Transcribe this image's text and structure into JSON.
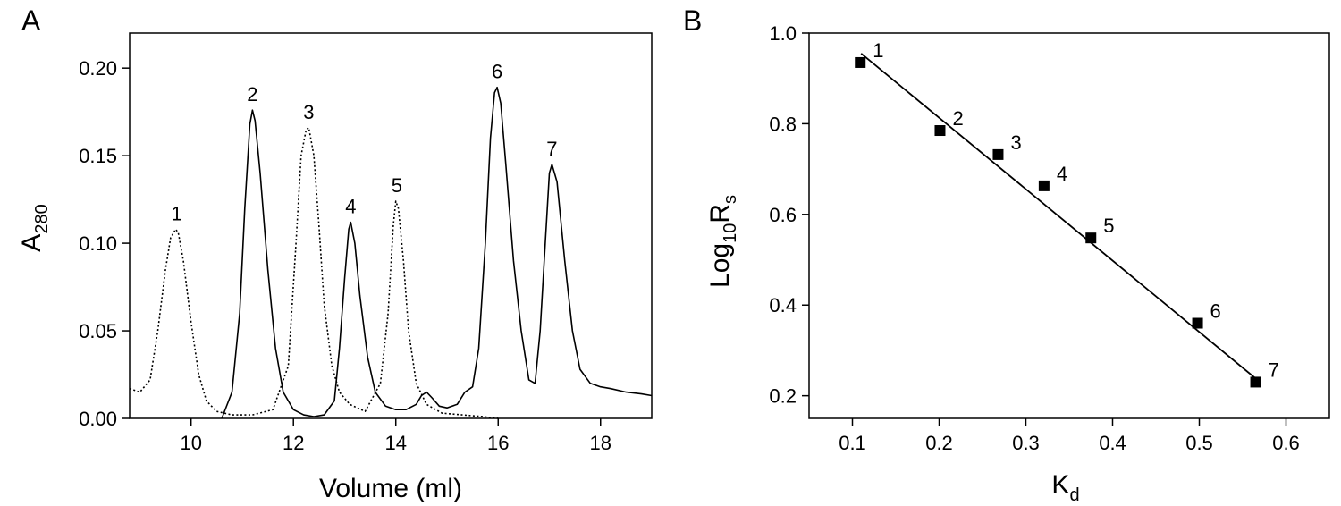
{
  "chart_data": [
    {
      "panel_label": "A",
      "type": "line",
      "xlabel": "Volume (ml)",
      "ylabel_main": "A",
      "ylabel_sub": "280",
      "xlim": [
        8.8,
        19.0
      ],
      "ylim": [
        0.0,
        0.22
      ],
      "xticks": [
        10,
        12,
        14,
        16,
        18
      ],
      "xtick_labels": [
        "10",
        "12",
        "14",
        "16",
        "18"
      ],
      "yticks": [
        0.0,
        0.05,
        0.1,
        0.15,
        0.2
      ],
      "ytick_labels": [
        "0.00",
        "0.05",
        "0.10",
        "0.15",
        "0.20"
      ],
      "series": [
        {
          "style": "dotted",
          "x": [
            8.8,
            9.0,
            9.2,
            9.35,
            9.5,
            9.6,
            9.7,
            9.75,
            9.85,
            10.0,
            10.15,
            10.3,
            10.5,
            10.8,
            11.2,
            11.6,
            11.9,
            12.05,
            12.15,
            12.25,
            12.3,
            12.4,
            12.5,
            12.6,
            12.75,
            12.9,
            13.1,
            13.4,
            13.7,
            13.85,
            13.95,
            14.0,
            14.05,
            14.15,
            14.25,
            14.4,
            14.6,
            14.9,
            15.3,
            15.7,
            16.0
          ],
          "y": [
            0.017,
            0.015,
            0.022,
            0.05,
            0.085,
            0.103,
            0.108,
            0.106,
            0.09,
            0.055,
            0.025,
            0.01,
            0.004,
            0.002,
            0.002,
            0.005,
            0.03,
            0.1,
            0.15,
            0.165,
            0.166,
            0.15,
            0.11,
            0.065,
            0.03,
            0.015,
            0.008,
            0.004,
            0.02,
            0.06,
            0.11,
            0.124,
            0.12,
            0.09,
            0.05,
            0.02,
            0.008,
            0.003,
            0.002,
            0.001,
            0.0
          ]
        },
        {
          "style": "solid",
          "x": [
            10.6,
            10.8,
            10.95,
            11.05,
            11.15,
            11.2,
            11.25,
            11.35,
            11.5,
            11.65,
            11.8,
            12.0,
            12.2,
            12.4,
            12.6,
            12.8,
            12.9,
            13.0,
            13.08,
            13.12,
            13.2,
            13.3,
            13.45,
            13.6,
            13.8,
            14.0,
            14.2,
            14.4,
            14.5,
            14.6,
            14.7,
            14.85,
            15.0,
            15.2,
            15.35,
            15.5,
            15.62,
            15.75,
            15.85,
            15.93,
            15.98,
            16.05,
            16.15,
            16.3,
            16.45,
            16.6,
            16.72,
            16.82,
            16.92,
            17.0,
            17.05,
            17.15,
            17.3,
            17.45,
            17.6,
            17.8,
            18.0,
            18.2,
            18.5,
            18.8,
            19.0
          ],
          "y": [
            0.0,
            0.015,
            0.06,
            0.12,
            0.168,
            0.176,
            0.17,
            0.14,
            0.085,
            0.04,
            0.015,
            0.005,
            0.002,
            0.001,
            0.002,
            0.01,
            0.04,
            0.08,
            0.108,
            0.112,
            0.1,
            0.07,
            0.035,
            0.015,
            0.007,
            0.005,
            0.005,
            0.008,
            0.013,
            0.015,
            0.012,
            0.007,
            0.006,
            0.008,
            0.015,
            0.018,
            0.04,
            0.1,
            0.16,
            0.186,
            0.189,
            0.18,
            0.145,
            0.09,
            0.05,
            0.022,
            0.02,
            0.05,
            0.1,
            0.14,
            0.145,
            0.135,
            0.09,
            0.05,
            0.028,
            0.02,
            0.018,
            0.017,
            0.015,
            0.014,
            0.013
          ]
        }
      ],
      "peaks": [
        {
          "label": "1",
          "x": 9.72,
          "y": 0.108
        },
        {
          "label": "2",
          "x": 11.2,
          "y": 0.176
        },
        {
          "label": "3",
          "x": 12.3,
          "y": 0.166
        },
        {
          "label": "4",
          "x": 13.12,
          "y": 0.112
        },
        {
          "label": "5",
          "x": 14.02,
          "y": 0.124
        },
        {
          "label": "6",
          "x": 15.98,
          "y": 0.189
        },
        {
          "label": "7",
          "x": 17.05,
          "y": 0.145
        }
      ]
    },
    {
      "panel_label": "B",
      "type": "scatter",
      "xlabel_main": "K",
      "xlabel_sub": "d",
      "ylabel_main": "Log",
      "ylabel_sub1": "10",
      "ylabel_mid": "R",
      "ylabel_sub2": "s",
      "xlim": [
        0.05,
        0.65
      ],
      "ylim": [
        0.15,
        1.0
      ],
      "xticks": [
        0.1,
        0.2,
        0.3,
        0.4,
        0.5,
        0.6
      ],
      "xtick_labels": [
        "0.1",
        "0.2",
        "0.3",
        "0.4",
        "0.5",
        "0.6"
      ],
      "yticks": [
        0.2,
        0.4,
        0.6,
        0.8,
        1.0
      ],
      "ytick_labels": [
        "0.2",
        "0.4",
        "0.6",
        "0.8",
        "1.0"
      ],
      "points": [
        {
          "label": "1",
          "x": 0.109,
          "y": 0.935
        },
        {
          "label": "2",
          "x": 0.201,
          "y": 0.785
        },
        {
          "label": "3",
          "x": 0.268,
          "y": 0.732
        },
        {
          "label": "4",
          "x": 0.321,
          "y": 0.663
        },
        {
          "label": "5",
          "x": 0.375,
          "y": 0.548
        },
        {
          "label": "6",
          "x": 0.498,
          "y": 0.36
        },
        {
          "label": "7",
          "x": 0.565,
          "y": 0.23
        }
      ],
      "fit_line": {
        "x": [
          0.11,
          0.567
        ],
        "y": [
          0.955,
          0.235
        ]
      }
    }
  ]
}
